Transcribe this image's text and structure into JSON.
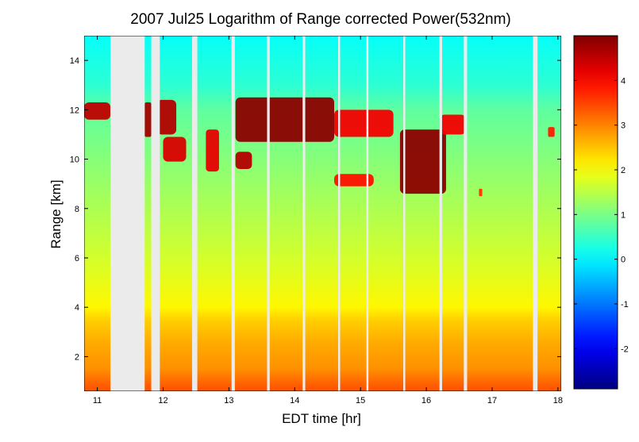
{
  "chart_data": {
    "type": "heatmap",
    "title": "2007 Jul25  Logarithm of Range corrected Power(532nm)",
    "xlabel": "EDT time [hr]",
    "ylabel": "Range [km]",
    "xlim": [
      10.8,
      18.05
    ],
    "ylim": [
      0.6,
      15.0
    ],
    "xticks": [
      11,
      12,
      13,
      14,
      15,
      16,
      17,
      18
    ],
    "yticks": [
      2,
      4,
      6,
      8,
      10,
      12,
      14
    ],
    "colorbar": {
      "range": [
        -2.9,
        5.0
      ],
      "ticks": [
        -2,
        -1,
        0,
        1,
        2,
        3,
        4
      ],
      "colormap": "jet"
    },
    "no_data_intervals": [
      [
        11.2,
        11.72
      ],
      [
        11.82,
        11.95
      ],
      [
        12.44,
        12.52
      ],
      [
        13.04,
        13.09
      ],
      [
        13.58,
        13.62
      ],
      [
        14.12,
        14.16
      ],
      [
        14.66,
        14.69
      ],
      [
        15.09,
        15.12
      ],
      [
        15.65,
        15.68
      ],
      [
        16.2,
        16.24
      ],
      [
        16.57,
        16.62
      ],
      [
        17.62,
        17.69
      ]
    ],
    "cloud_layers": [
      {
        "x": [
          10.8,
          11.2
        ],
        "y": [
          11.6,
          12.3
        ],
        "value": 4.5
      },
      {
        "x": [
          11.72,
          11.82
        ],
        "y": [
          10.9,
          12.3
        ],
        "value": 4.7
      },
      {
        "x": [
          11.9,
          12.2
        ],
        "y": [
          11.0,
          12.4
        ],
        "value": 4.6
      },
      {
        "x": [
          12.0,
          12.35
        ],
        "y": [
          9.9,
          10.9
        ],
        "value": 4.3
      },
      {
        "x": [
          12.65,
          12.85
        ],
        "y": [
          9.5,
          11.2
        ],
        "value": 4.2
      },
      {
        "x": [
          13.1,
          13.35
        ],
        "y": [
          9.6,
          10.3
        ],
        "value": 4.6
      },
      {
        "x": [
          13.1,
          14.6
        ],
        "y": [
          10.7,
          12.5
        ],
        "value": 4.9
      },
      {
        "x": [
          14.6,
          15.5
        ],
        "y": [
          10.9,
          12.0
        ],
        "value": 4.1
      },
      {
        "x": [
          14.6,
          15.2
        ],
        "y": [
          8.9,
          9.4
        ],
        "value": 3.9
      },
      {
        "x": [
          15.6,
          16.3
        ],
        "y": [
          8.6,
          11.2
        ],
        "value": 4.9
      },
      {
        "x": [
          16.2,
          16.6
        ],
        "y": [
          11.0,
          11.8
        ],
        "value": 4.1
      },
      {
        "x": [
          16.8,
          16.85
        ],
        "y": [
          8.5,
          8.8
        ],
        "value": 3.6
      },
      {
        "x": [
          17.85,
          17.95
        ],
        "y": [
          10.9,
          11.3
        ],
        "value": 3.8
      }
    ],
    "background_profile": [
      {
        "range_km": 0.6,
        "value": 3.4
      },
      {
        "range_km": 1.0,
        "value": 3.2
      },
      {
        "range_km": 1.5,
        "value": 2.9
      },
      {
        "range_km": 2.5,
        "value": 2.7
      },
      {
        "range_km": 3.5,
        "value": 2.4
      },
      {
        "range_km": 4.0,
        "value": 2.1
      },
      {
        "range_km": 6.0,
        "value": 1.7
      },
      {
        "range_km": 8.0,
        "value": 1.4
      },
      {
        "range_km": 10.0,
        "value": 1.1
      },
      {
        "range_km": 12.0,
        "value": 0.8
      },
      {
        "range_km": 13.0,
        "value": 0.4
      },
      {
        "range_km": 15.0,
        "value": 0.1
      }
    ]
  }
}
